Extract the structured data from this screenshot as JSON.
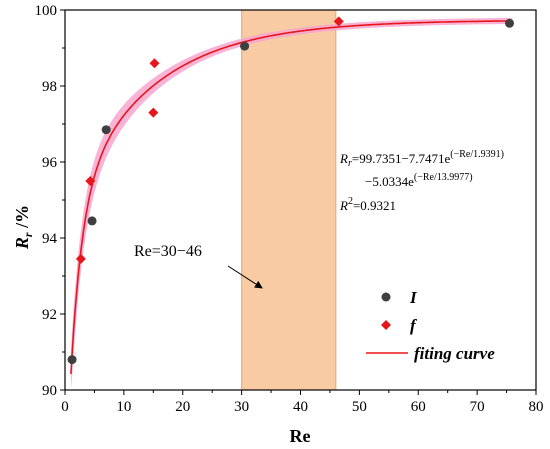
{
  "chart_data": {
    "type": "scatter",
    "xlabel": "Re",
    "ylabel_main": "R",
    "ylabel_sub": "r",
    "ylabel_unit": " /%",
    "xlim": [
      0,
      80
    ],
    "ylim": [
      90,
      100
    ],
    "xticks": [
      0,
      10,
      20,
      30,
      40,
      50,
      60,
      70,
      80
    ],
    "yticks": [
      90,
      92,
      94,
      96,
      98,
      100
    ],
    "grid": false,
    "legend_position": "bottom-right",
    "series": [
      {
        "name": "I",
        "marker": "circle",
        "color": "#3f3f3f",
        "points": [
          [
            1.2,
            90.8
          ],
          [
            4.6,
            94.45
          ],
          [
            7.0,
            96.85
          ],
          [
            30.5,
            99.05
          ],
          [
            75.5,
            99.65
          ]
        ]
      },
      {
        "name": "f",
        "marker": "diamond",
        "color": "#e8161c",
        "points": [
          [
            2.7,
            93.45
          ],
          [
            4.3,
            95.5
          ],
          [
            15.0,
            97.3
          ],
          [
            15.2,
            98.6
          ],
          [
            46.5,
            99.7
          ]
        ]
      }
    ],
    "fit": {
      "name": "fiting curve",
      "color": "#e8161c",
      "band_color": "#f7a6cf",
      "y0": 99.7351,
      "a1": 7.7471,
      "t1": 1.9391,
      "a2": 5.0334,
      "t2": 13.9977,
      "xrange": [
        1.0,
        76.0
      ]
    },
    "highlight": {
      "x_range": [
        30,
        46
      ],
      "color": "#f9cba3",
      "border_color": "#e0a67e",
      "label": "Re=30−46"
    },
    "equation": {
      "line1_prefix": "R",
      "line1_sub": "r",
      "line1_text": "=99.7351−7.7471e",
      "line1_exp": "(−Re/1.9391)",
      "line2_text": "−5.0334e",
      "line2_exp": "(−Re/13.9977)",
      "line3_prefix": "R",
      "line3_sup": "2",
      "line3_text": "=0.9321"
    }
  }
}
